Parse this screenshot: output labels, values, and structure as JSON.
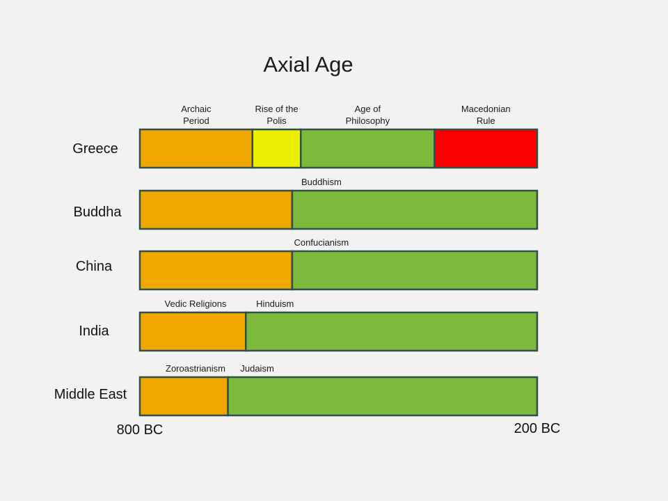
{
  "chart_data": {
    "type": "timeline-bar",
    "title": "Axial Age",
    "xlim_bc": [
      800,
      200
    ],
    "x_start_label": "800 BC",
    "x_end_label": "200 BC",
    "colors": {
      "orange": "#f0a800",
      "yellow": "#eeee00",
      "green": "#7cba3c",
      "red": "#fb0000",
      "border": "#2f4f4f"
    },
    "rows": [
      {
        "label": "Greece",
        "segments": [
          {
            "label_lines": [
              "Archaic",
              "Period"
            ],
            "start_bc": 800,
            "end_bc": 630,
            "color": "orange"
          },
          {
            "label_lines": [
              "Rise of the",
              "Polis"
            ],
            "start_bc": 630,
            "end_bc": 557,
            "color": "yellow"
          },
          {
            "label_lines": [
              "Age of",
              "Philosophy"
            ],
            "start_bc": 557,
            "end_bc": 355,
            "color": "green"
          },
          {
            "label_lines": [
              "Macedonian",
              "Rule"
            ],
            "start_bc": 355,
            "end_bc": 200,
            "color": "red"
          }
        ]
      },
      {
        "label": "Buddha",
        "segments": [
          {
            "label_lines": [],
            "start_bc": 800,
            "end_bc": 570,
            "color": "orange"
          },
          {
            "label_lines": [
              "Buddhism"
            ],
            "start_bc": 570,
            "end_bc": 200,
            "color": "green"
          }
        ]
      },
      {
        "label": "China",
        "segments": [
          {
            "label_lines": [],
            "start_bc": 800,
            "end_bc": 570,
            "color": "orange"
          },
          {
            "label_lines": [
              "Confucianism"
            ],
            "start_bc": 570,
            "end_bc": 200,
            "color": "green"
          }
        ]
      },
      {
        "label": "India",
        "segments": [
          {
            "label_lines": [
              "Vedic Religions"
            ],
            "start_bc": 800,
            "end_bc": 640,
            "color": "orange"
          },
          {
            "label_lines": [
              "Hinduism"
            ],
            "start_bc": 640,
            "end_bc": 200,
            "color": "green"
          }
        ]
      },
      {
        "label": "Middle East",
        "segments": [
          {
            "label_lines": [
              "Zoroastrianism"
            ],
            "start_bc": 800,
            "end_bc": 667,
            "color": "orange"
          },
          {
            "label_lines": [
              "Judaism"
            ],
            "start_bc": 667,
            "end_bc": 200,
            "color": "green"
          }
        ]
      }
    ]
  }
}
